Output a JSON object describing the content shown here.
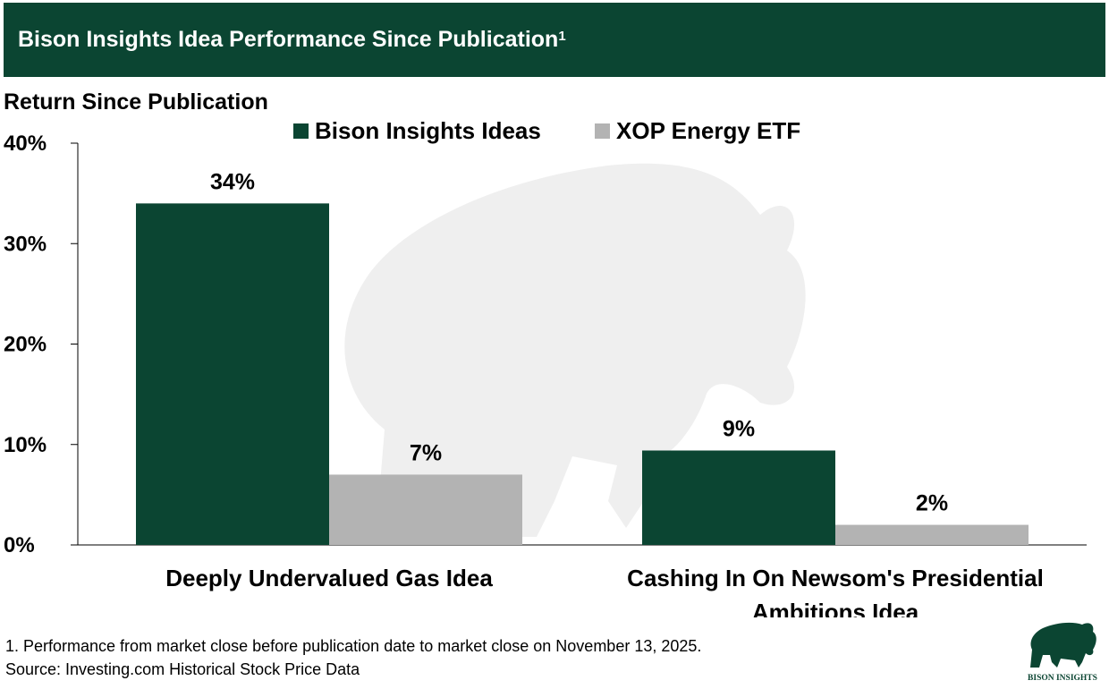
{
  "header": {
    "title": "Bison Insights Idea Performance Since Publication",
    "title_superscript": "1"
  },
  "chart_data": {
    "type": "bar",
    "ylabel": "Return Since Publication",
    "ylim": [
      0,
      40
    ],
    "yticks": [
      0,
      10,
      20,
      30,
      40
    ],
    "ytick_labels": [
      "0%",
      "10%",
      "20%",
      "30%",
      "40%"
    ],
    "categories": [
      [
        "Deeply Undervalued Gas Idea"
      ],
      [
        "Cashing In On Newsom's Presidential",
        "Ambitions Idea"
      ]
    ],
    "series": [
      {
        "name": "Bison Insights Ideas",
        "color": "#0b4532",
        "values": [
          34,
          9.4
        ],
        "labels": [
          "34%",
          "9%"
        ]
      },
      {
        "name": "XOP Energy ETF",
        "color": "#b3b3b3",
        "values": [
          7,
          2
        ],
        "labels": [
          "7%",
          "2%"
        ]
      }
    ],
    "legend_position": "top-center",
    "grid": false
  },
  "footnotes": {
    "note1": "1. Performance from market close before publication date to market close on November 13, 2025.",
    "source": "Source: Investing.com Historical Stock Price Data"
  },
  "logo": {
    "text": "BISON INSIGHTS",
    "color": "#0b4532"
  },
  "watermark": {
    "icon": "bison-icon",
    "color": "#efefef"
  }
}
